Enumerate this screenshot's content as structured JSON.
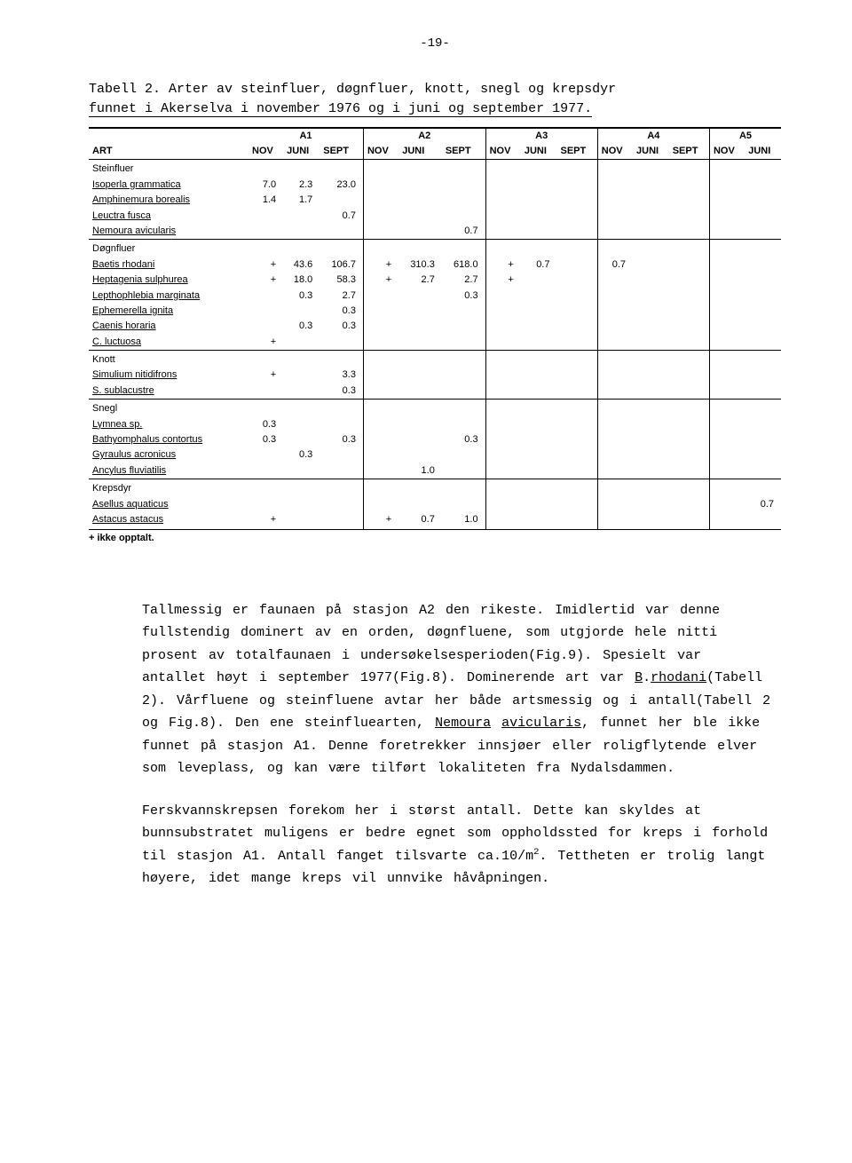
{
  "page_number": "-19-",
  "caption": {
    "label": "Tabell 2.",
    "text_line1": "Arter av steinfluer, døgnfluer, knott, snegl og krepsdyr",
    "text_line2": "funnet i Akerselva i november 1976 og i juni og september 1977."
  },
  "table": {
    "column_group_labels": [
      "A1",
      "A2",
      "A3",
      "A4",
      "A5"
    ],
    "sub_headers": [
      "NOV",
      "JUNI",
      "SEPT"
    ],
    "row_label_header": "ART",
    "groups": [
      {
        "name": "Steinfluer",
        "rows": [
          {
            "species": "Isoperla grammatica",
            "a1": [
              "7.0",
              "2.3",
              "23.0"
            ],
            "a2": [
              "",
              "",
              ""
            ],
            "a3": [
              "",
              "",
              ""
            ],
            "a4": [
              "",
              "",
              ""
            ],
            "a5": [
              "",
              ""
            ]
          },
          {
            "species": "Amphinemura borealis",
            "a1": [
              "1.4",
              "1.7",
              ""
            ],
            "a2": [
              "",
              "",
              ""
            ],
            "a3": [
              "",
              "",
              ""
            ],
            "a4": [
              "",
              "",
              ""
            ],
            "a5": [
              "",
              ""
            ]
          },
          {
            "species": "Leuctra fusca",
            "a1": [
              "",
              "",
              "0.7"
            ],
            "a2": [
              "",
              "",
              ""
            ],
            "a3": [
              "",
              "",
              ""
            ],
            "a4": [
              "",
              "",
              ""
            ],
            "a5": [
              "",
              ""
            ]
          },
          {
            "species": "Nemoura avicularis",
            "a1": [
              "",
              "",
              ""
            ],
            "a2": [
              "",
              "",
              "0.7"
            ],
            "a3": [
              "",
              "",
              ""
            ],
            "a4": [
              "",
              "",
              ""
            ],
            "a5": [
              "",
              ""
            ]
          }
        ]
      },
      {
        "name": "Døgnfluer",
        "rows": [
          {
            "species": "Baetis rhodani",
            "a1": [
              "+",
              "43.6",
              "106.7"
            ],
            "a2": [
              "+",
              "310.3",
              "618.0"
            ],
            "a3": [
              "+",
              "0.7",
              ""
            ],
            "a4": [
              "0.7",
              "",
              ""
            ],
            "a5": [
              "",
              ""
            ]
          },
          {
            "species": "Heptagenia sulphurea",
            "a1": [
              "+",
              "18.0",
              "58.3"
            ],
            "a2": [
              "+",
              "2.7",
              "2.7"
            ],
            "a3": [
              "+",
              "",
              ""
            ],
            "a4": [
              "",
              "",
              ""
            ],
            "a5": [
              "",
              ""
            ]
          },
          {
            "species": "Lepthophlebia marginata",
            "a1": [
              "",
              "0.3",
              "2.7"
            ],
            "a2": [
              "",
              "",
              "0.3"
            ],
            "a3": [
              "",
              "",
              ""
            ],
            "a4": [
              "",
              "",
              ""
            ],
            "a5": [
              "",
              ""
            ]
          },
          {
            "species": "Ephemerella ignita",
            "a1": [
              "",
              "",
              "0.3"
            ],
            "a2": [
              "",
              "",
              ""
            ],
            "a3": [
              "",
              "",
              ""
            ],
            "a4": [
              "",
              "",
              ""
            ],
            "a5": [
              "",
              ""
            ]
          },
          {
            "species": "Caenis horaria",
            "a1": [
              "",
              "0.3",
              "0.3"
            ],
            "a2": [
              "",
              "",
              ""
            ],
            "a3": [
              "",
              "",
              ""
            ],
            "a4": [
              "",
              "",
              ""
            ],
            "a5": [
              "",
              ""
            ]
          },
          {
            "species": "C. luctuosa",
            "a1": [
              "+",
              "",
              ""
            ],
            "a2": [
              "",
              "",
              ""
            ],
            "a3": [
              "",
              "",
              ""
            ],
            "a4": [
              "",
              "",
              ""
            ],
            "a5": [
              "",
              ""
            ]
          }
        ]
      },
      {
        "name": "Knott",
        "rows": [
          {
            "species": "Simulium nitidifrons",
            "a1": [
              "+",
              "",
              "3.3"
            ],
            "a2": [
              "",
              "",
              ""
            ],
            "a3": [
              "",
              "",
              ""
            ],
            "a4": [
              "",
              "",
              ""
            ],
            "a5": [
              "",
              ""
            ]
          },
          {
            "species": "S. sublacustre",
            "a1": [
              "",
              "",
              "0.3"
            ],
            "a2": [
              "",
              "",
              ""
            ],
            "a3": [
              "",
              "",
              ""
            ],
            "a4": [
              "",
              "",
              ""
            ],
            "a5": [
              "",
              ""
            ]
          }
        ]
      },
      {
        "name": "Snegl",
        "rows": [
          {
            "species": "Lymnea sp.",
            "a1": [
              "0.3",
              "",
              ""
            ],
            "a2": [
              "",
              "",
              ""
            ],
            "a3": [
              "",
              "",
              ""
            ],
            "a4": [
              "",
              "",
              ""
            ],
            "a5": [
              "",
              ""
            ]
          },
          {
            "species": "Bathyomphalus contortus",
            "a1": [
              "0.3",
              "",
              "0.3"
            ],
            "a2": [
              "",
              "",
              "0.3"
            ],
            "a3": [
              "",
              "",
              ""
            ],
            "a4": [
              "",
              "",
              ""
            ],
            "a5": [
              "",
              ""
            ]
          },
          {
            "species": "Gyraulus acronicus",
            "a1": [
              "",
              "0.3",
              ""
            ],
            "a2": [
              "",
              "",
              ""
            ],
            "a3": [
              "",
              "",
              ""
            ],
            "a4": [
              "",
              "",
              ""
            ],
            "a5": [
              "",
              ""
            ]
          },
          {
            "species": "Ancylus fluviatilis",
            "a1": [
              "",
              "",
              ""
            ],
            "a2": [
              "",
              "1.0",
              ""
            ],
            "a3": [
              "",
              "",
              ""
            ],
            "a4": [
              "",
              "",
              ""
            ],
            "a5": [
              "",
              ""
            ]
          }
        ]
      },
      {
        "name": "Krepsdyr",
        "rows": [
          {
            "species": "Asellus aquaticus",
            "a1": [
              "",
              "",
              ""
            ],
            "a2": [
              "",
              "",
              ""
            ],
            "a3": [
              "",
              "",
              ""
            ],
            "a4": [
              "",
              "",
              ""
            ],
            "a5": [
              "",
              "0.7"
            ]
          },
          {
            "species": "Astacus astacus",
            "a1": [
              "+",
              "",
              ""
            ],
            "a2": [
              "+",
              "0.7",
              "1.0"
            ],
            "a3": [
              "",
              "",
              ""
            ],
            "a4": [
              "",
              "",
              ""
            ],
            "a5": [
              "",
              ""
            ]
          }
        ]
      }
    ],
    "footnote": "+ ikke opptalt."
  },
  "paragraphs": {
    "p1_parts": [
      "Tallmessig er faunaen på stasjon A2 den rikeste.  Imidlertid var denne fullstendig dominert av en orden, døgnfluene, som utgjorde hele nitti prosent av totalfaunaen i undersøkelsesperioden(Fig.9).  Spesielt var antallet høyt i september 1977(Fig.8).  Dominerende art var ",
      "B",
      ".",
      "rhodani",
      "(Tabell 2). Vårfluene og steinfluene avtar her både artsmessig og i antall(Tabell 2 og Fig.8).  Den ene steinfluearten, ",
      "Nemoura",
      " ",
      "avicularis",
      ", funnet her ble ikke funnet på stasjon A1.  Denne foretrekker innsjøer eller roligflytende elver som leveplass, og kan være tilført lokaliteten fra Nydalsdammen."
    ],
    "p2_parts": [
      "Ferskvannskrepsen forekom her i størst antall.  Dette kan skyldes at bunnsubstratet muligens er bedre egnet som oppholdssted for kreps i forhold til stasjon A1.  Antall fanget tilsvarte ca.10/m",
      "2",
      ".  Tettheten er trolig langt høyere, idet mange kreps vil unnvike håvåpningen."
    ]
  }
}
